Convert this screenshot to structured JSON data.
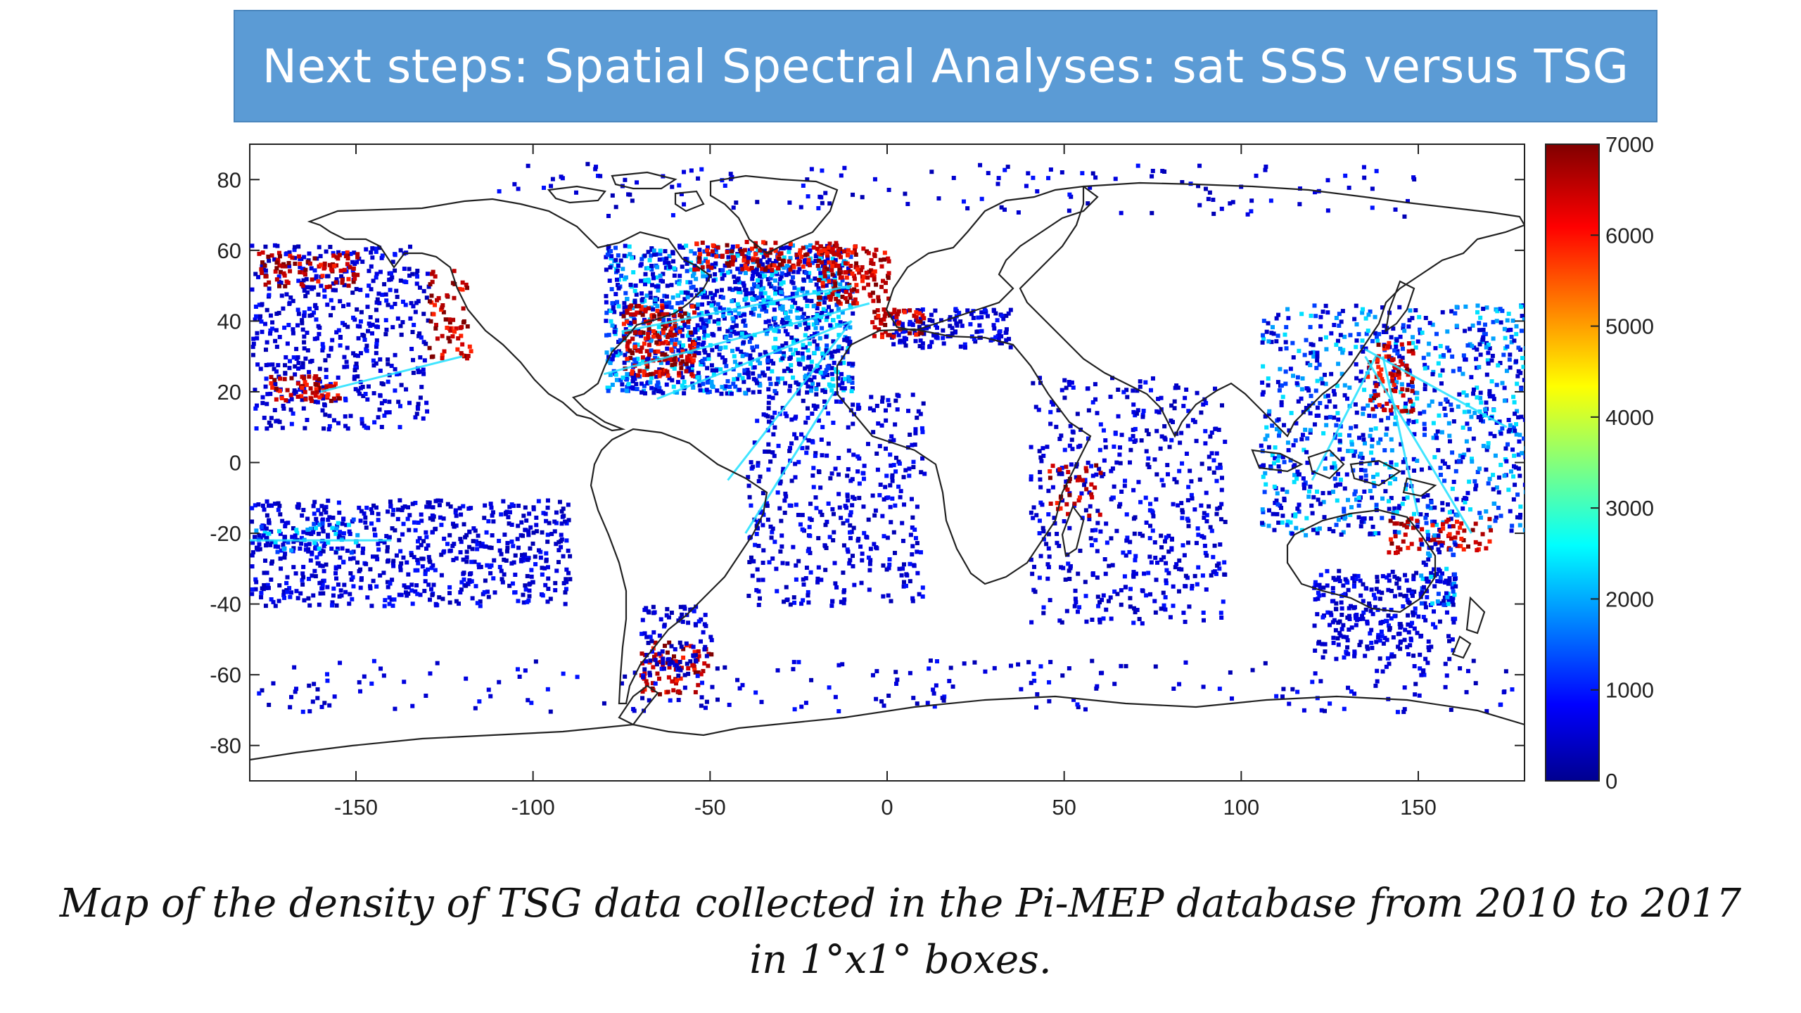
{
  "title": "Next steps: Spatial Spectral Analyses: sat SSS versus TSG",
  "caption": "Map of the density of TSG data collected in the Pi-MEP  database from 2010 to 2017 in 1°x1° boxes.",
  "chart_data": {
    "type": "heatmap",
    "description_kind": "global map of TSG observation density per 1°x1° box",
    "xlim": [
      -180,
      180
    ],
    "ylim": [
      -90,
      90
    ],
    "xticks": [
      -150,
      -100,
      -50,
      0,
      50,
      100,
      150
    ],
    "yticks": [
      80,
      60,
      40,
      20,
      0,
      -20,
      -40,
      -60,
      -80
    ],
    "colorbar": {
      "range": [
        0,
        7000
      ],
      "ticks": [
        0,
        1000,
        2000,
        3000,
        4000,
        5000,
        6000,
        7000
      ],
      "colormap": "jet"
    },
    "grid": false,
    "coastline_color": "#222222"
  }
}
